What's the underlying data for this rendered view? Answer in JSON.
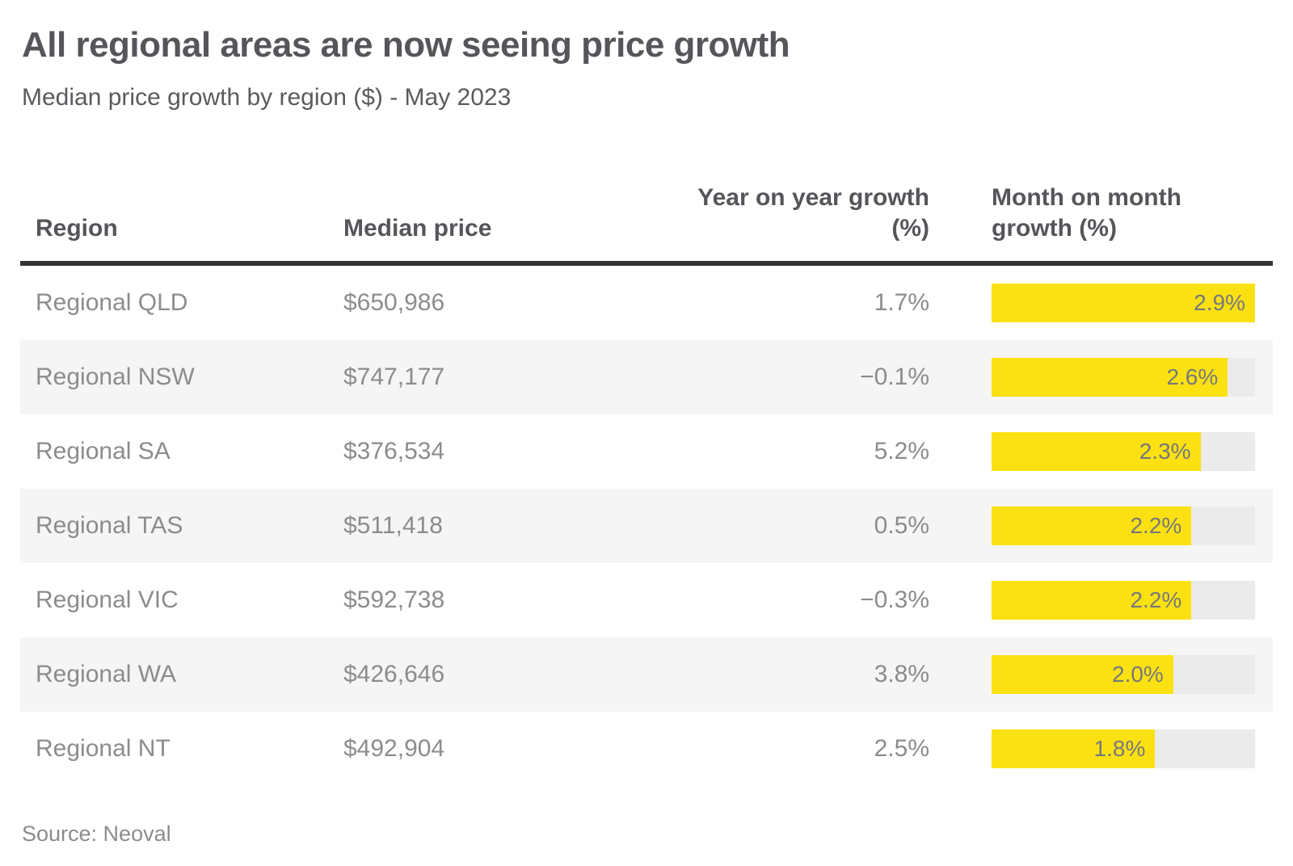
{
  "header": {
    "title": "All regional areas are now seeing price growth",
    "subtitle": "Median price growth by region ($) - May 2023"
  },
  "table": {
    "columns": {
      "region": "Region",
      "median_price": "Median price",
      "yoy": "Year on year growth (%)",
      "mom": "Month on month growth (%)"
    },
    "rows": [
      {
        "region": "Regional QLD",
        "median_price": "$650,986",
        "yoy": "1.7%",
        "mom_label": "2.9%",
        "mom_value": 2.9
      },
      {
        "region": "Regional NSW",
        "median_price": "$747,177",
        "yoy": "−0.1%",
        "mom_label": "2.6%",
        "mom_value": 2.6
      },
      {
        "region": "Regional SA",
        "median_price": "$376,534",
        "yoy": "5.2%",
        "mom_label": "2.3%",
        "mom_value": 2.3
      },
      {
        "region": "Regional TAS",
        "median_price": "$511,418",
        "yoy": "0.5%",
        "mom_label": "2.2%",
        "mom_value": 2.2
      },
      {
        "region": "Regional VIC",
        "median_price": "$592,738",
        "yoy": "−0.3%",
        "mom_label": "2.2%",
        "mom_value": 2.2
      },
      {
        "region": "Regional WA",
        "median_price": "$426,646",
        "yoy": "3.8%",
        "mom_label": "2.0%",
        "mom_value": 2.0
      },
      {
        "region": "Regional NT",
        "median_price": "$492,904",
        "yoy": "2.5%",
        "mom_label": "1.8%",
        "mom_value": 1.8
      }
    ]
  },
  "footer": {
    "source": "Source: Neoval"
  },
  "colors": {
    "heading_text": "#54565A",
    "body_text": "#8A8C8E",
    "bar_fill": "#FBE112",
    "bar_track": "#EBEBEB",
    "row_stripe": "#F5F5F5",
    "header_rule": "#323538",
    "bar_label": "#76787B"
  },
  "chart_data": {
    "type": "table",
    "title": "All regional areas are now seeing price growth",
    "subtitle": "Median price growth by region ($) - May 2023",
    "columns": [
      "Region",
      "Median price",
      "Year on year growth (%)",
      "Month on month growth (%)"
    ],
    "categories": [
      "Regional QLD",
      "Regional NSW",
      "Regional SA",
      "Regional TAS",
      "Regional VIC",
      "Regional WA",
      "Regional NT"
    ],
    "series": [
      {
        "name": "Median price ($)",
        "values": [
          650986,
          747177,
          376534,
          511418,
          592738,
          426646,
          492904
        ]
      },
      {
        "name": "Year on year growth (%)",
        "values": [
          1.7,
          -0.1,
          5.2,
          0.5,
          -0.3,
          3.8,
          2.5
        ]
      },
      {
        "name": "Month on month growth (%)",
        "values": [
          2.9,
          2.6,
          2.3,
          2.2,
          2.2,
          2.0,
          1.8
        ]
      }
    ],
    "bar_encoded_series": "Month on month growth (%)",
    "bar_scale_max": 2.9,
    "row_striping": "alternate rows shaded starting with second row",
    "source": "Source: Neoval"
  }
}
